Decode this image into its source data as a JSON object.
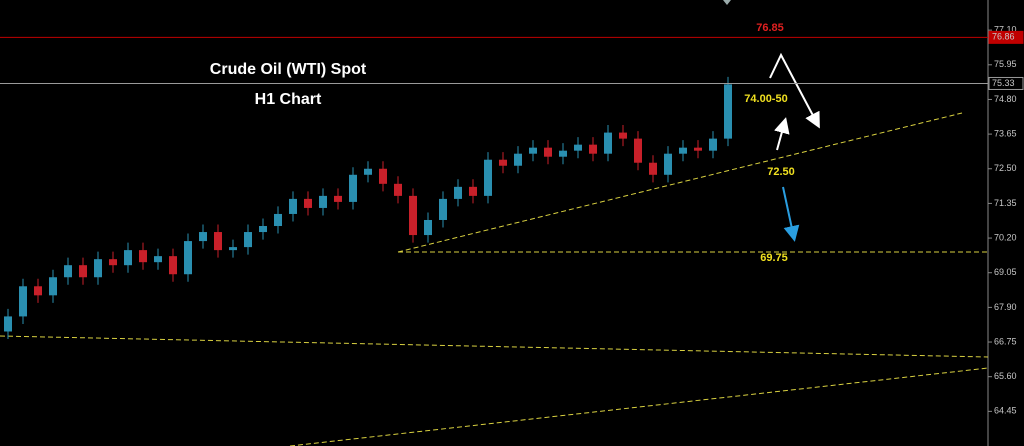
{
  "chart_data": {
    "type": "candlestick",
    "title": "Crude Oil (WTI) Spot",
    "subtitle": "H1 Chart",
    "open": [
      67.1,
      67.6,
      68.6,
      68.3,
      68.9,
      69.3,
      68.9,
      69.5,
      69.3,
      69.8,
      69.4,
      69.6,
      69.0,
      70.1,
      70.4,
      69.8,
      69.9,
      70.4,
      70.6,
      71.0,
      71.5,
      71.2,
      71.6,
      71.4,
      72.3,
      72.5,
      72.0,
      71.6,
      70.3,
      70.8,
      71.5,
      71.9,
      71.6,
      72.8,
      72.6,
      73.0,
      73.2,
      72.9,
      73.1,
      73.3,
      73.0,
      73.7,
      73.5,
      72.7,
      72.3,
      73.0,
      73.2,
      73.1,
      73.5
    ],
    "high": [
      67.85,
      68.85,
      68.85,
      69.15,
      69.55,
      69.55,
      69.75,
      69.75,
      70.05,
      70.05,
      69.85,
      69.85,
      70.35,
      70.65,
      70.65,
      70.15,
      70.65,
      70.85,
      71.25,
      71.75,
      71.75,
      71.85,
      71.85,
      72.55,
      72.75,
      72.75,
      72.25,
      71.85,
      71.05,
      71.75,
      72.15,
      72.15,
      73.05,
      73.05,
      73.25,
      73.45,
      73.45,
      73.35,
      73.55,
      73.55,
      73.95,
      73.95,
      73.75,
      72.95,
      73.25,
      73.45,
      73.45,
      73.75,
      75.55
    ],
    "low": [
      66.85,
      67.35,
      68.05,
      68.05,
      68.65,
      68.65,
      68.65,
      69.05,
      69.05,
      69.15,
      69.15,
      68.75,
      68.75,
      69.85,
      69.55,
      69.55,
      69.65,
      70.15,
      70.35,
      70.75,
      70.95,
      70.95,
      71.15,
      71.15,
      72.05,
      71.75,
      71.35,
      70.05,
      70.05,
      70.55,
      71.25,
      71.35,
      71.35,
      72.35,
      72.35,
      72.75,
      72.65,
      72.65,
      72.85,
      72.75,
      72.75,
      73.25,
      72.45,
      72.05,
      72.05,
      72.75,
      72.85,
      72.85,
      73.25
    ],
    "close": [
      67.6,
      68.6,
      68.3,
      68.9,
      69.3,
      68.9,
      69.5,
      69.3,
      69.8,
      69.4,
      69.6,
      69.0,
      70.1,
      70.4,
      69.8,
      69.9,
      70.4,
      70.6,
      71.0,
      71.5,
      71.2,
      71.6,
      71.4,
      72.3,
      72.5,
      72.0,
      71.6,
      70.3,
      70.8,
      71.5,
      71.9,
      71.6,
      72.8,
      72.6,
      73.0,
      73.2,
      72.9,
      73.1,
      73.3,
      73.0,
      73.7,
      73.5,
      72.7,
      72.3,
      73.0,
      73.2,
      73.1,
      73.5,
      75.3
    ],
    "up_color": "#2a8fb0",
    "down_color": "#c8202a",
    "ylim": [
      63.3,
      78.1
    ],
    "yticks": [
      {
        "value": 77.1,
        "label": "77.10"
      },
      {
        "value": 75.95,
        "label": "75.95"
      },
      {
        "value": 74.8,
        "label": "74.80"
      },
      {
        "value": 73.65,
        "label": "73.65"
      },
      {
        "value": 72.5,
        "label": "72.50"
      },
      {
        "value": 71.35,
        "label": "71.35"
      },
      {
        "value": 70.2,
        "label": "70.20"
      },
      {
        "value": 69.05,
        "label": "69.05"
      },
      {
        "value": 67.9,
        "label": "67.90"
      },
      {
        "value": 66.75,
        "label": "66.75"
      },
      {
        "value": 65.6,
        "label": "65.60"
      },
      {
        "value": 64.45,
        "label": "64.45"
      }
    ],
    "levels": [
      {
        "value": 76.86,
        "color": "#c00000"
      },
      {
        "value": 75.33,
        "color": "#9a9a9a"
      }
    ],
    "annotations": [
      "76.85",
      "74.00-50",
      "72.50",
      "69.75"
    ]
  }
}
